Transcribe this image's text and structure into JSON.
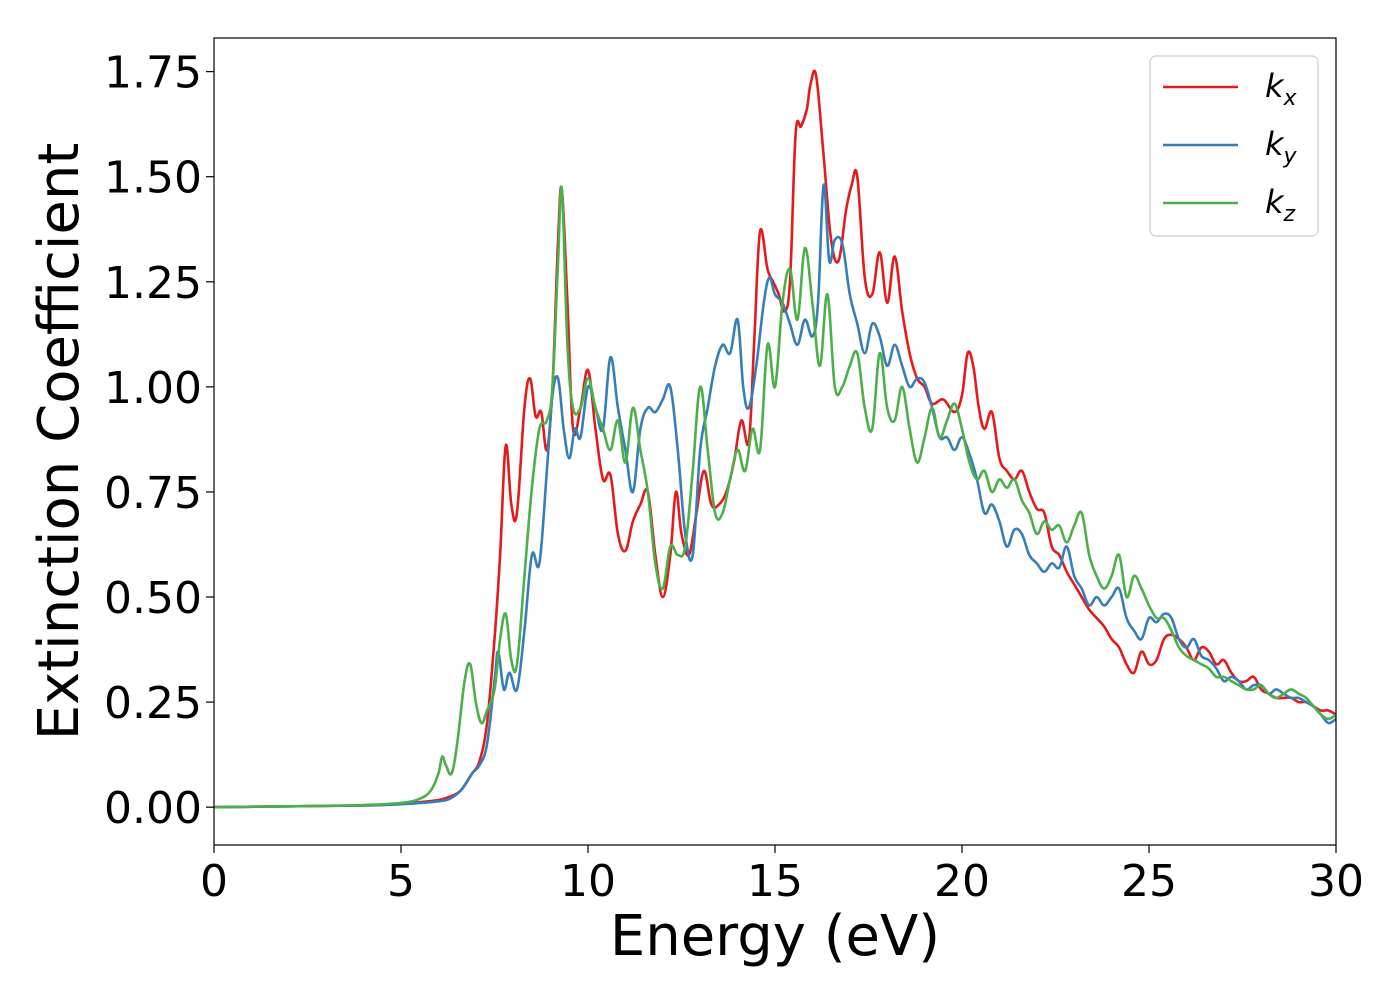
{
  "chart_data": {
    "type": "line",
    "xlabel": "Energy (eV)",
    "ylabel": "Extinction Coefficient",
    "xlim": [
      0,
      30
    ],
    "ylim": [
      -0.09,
      1.83
    ],
    "xticks": [
      0,
      5,
      10,
      15,
      20,
      25,
      30
    ],
    "xtick_labels": [
      "0",
      "5",
      "10",
      "15",
      "20",
      "25",
      "30"
    ],
    "yticks": [
      0.0,
      0.25,
      0.5,
      0.75,
      1.0,
      1.25,
      1.5,
      1.75
    ],
    "ytick_labels": [
      "0.00",
      "0.25",
      "0.50",
      "0.75",
      "1.00",
      "1.25",
      "1.50",
      "1.75"
    ],
    "grid": false,
    "legend_position": "top-right",
    "series": [
      {
        "name": "kx",
        "label_main": "k",
        "label_sub": "x",
        "color": "#e41a1c",
        "x": [
          0,
          2,
          4,
          5,
          5.5,
          6,
          6.3,
          6.6,
          6.9,
          7.1,
          7.3,
          7.5,
          7.65,
          7.8,
          7.95,
          8.1,
          8.3,
          8.45,
          8.6,
          8.75,
          8.9,
          9.05,
          9.2,
          9.3,
          9.45,
          9.6,
          9.8,
          10.0,
          10.2,
          10.4,
          10.6,
          10.8,
          11.0,
          11.2,
          11.4,
          11.6,
          11.8,
          12.0,
          12.2,
          12.35,
          12.5,
          12.7,
          12.9,
          13.1,
          13.3,
          13.5,
          13.7,
          13.9,
          14.1,
          14.3,
          14.45,
          14.6,
          14.8,
          14.95,
          15.1,
          15.25,
          15.4,
          15.55,
          15.7,
          15.85,
          15.95,
          16.1,
          16.3,
          16.5,
          16.7,
          16.9,
          17.05,
          17.2,
          17.4,
          17.6,
          17.8,
          18.0,
          18.2,
          18.4,
          18.6,
          18.8,
          19.0,
          19.2,
          19.5,
          19.8,
          20.0,
          20.15,
          20.3,
          20.45,
          20.6,
          20.8,
          21.0,
          21.2,
          21.4,
          21.6,
          21.8,
          22.0,
          22.2,
          22.4,
          22.6,
          22.8,
          23.0,
          23.2,
          23.4,
          23.6,
          23.8,
          24.0,
          24.2,
          24.4,
          24.6,
          24.8,
          25.0,
          25.2,
          25.4,
          25.6,
          25.8,
          26.0,
          26.2,
          26.4,
          26.6,
          26.8,
          27.0,
          27.2,
          27.4,
          27.6,
          27.8,
          28.0,
          28.2,
          28.4,
          28.6,
          28.8,
          29.0,
          29.2,
          29.4,
          29.6,
          29.8,
          30.0
        ],
        "y": [
          0.0,
          0.002,
          0.004,
          0.008,
          0.012,
          0.017,
          0.025,
          0.04,
          0.08,
          0.11,
          0.2,
          0.4,
          0.6,
          0.86,
          0.72,
          0.7,
          0.95,
          1.02,
          0.93,
          0.94,
          0.85,
          1.0,
          1.35,
          1.47,
          1.2,
          0.9,
          0.95,
          1.04,
          0.9,
          0.78,
          0.79,
          0.65,
          0.61,
          0.68,
          0.72,
          0.75,
          0.6,
          0.5,
          0.6,
          0.75,
          0.65,
          0.6,
          0.7,
          0.8,
          0.72,
          0.72,
          0.75,
          0.82,
          0.92,
          0.87,
          1.12,
          1.37,
          1.28,
          1.25,
          1.22,
          1.18,
          1.25,
          1.6,
          1.62,
          1.66,
          1.72,
          1.74,
          1.55,
          1.35,
          1.3,
          1.42,
          1.48,
          1.5,
          1.26,
          1.22,
          1.32,
          1.2,
          1.31,
          1.18,
          1.08,
          1.02,
          1.0,
          0.96,
          0.97,
          0.94,
          0.98,
          1.08,
          1.05,
          0.95,
          0.9,
          0.94,
          0.83,
          0.8,
          0.78,
          0.8,
          0.75,
          0.71,
          0.7,
          0.62,
          0.6,
          0.56,
          0.53,
          0.5,
          0.47,
          0.45,
          0.43,
          0.4,
          0.38,
          0.34,
          0.32,
          0.37,
          0.34,
          0.35,
          0.4,
          0.41,
          0.4,
          0.38,
          0.35,
          0.38,
          0.37,
          0.34,
          0.35,
          0.32,
          0.3,
          0.3,
          0.31,
          0.28,
          0.27,
          0.26,
          0.26,
          0.26,
          0.25,
          0.25,
          0.24,
          0.23,
          0.23,
          0.22
        ],
        "note": ""
      },
      {
        "name": "ky",
        "label_main": "k",
        "label_sub": "y",
        "color": "#377eb8",
        "x": [
          0,
          2,
          4,
          5,
          5.5,
          6,
          6.3,
          6.6,
          6.9,
          7.1,
          7.3,
          7.5,
          7.6,
          7.75,
          7.9,
          8.1,
          8.3,
          8.5,
          8.7,
          8.9,
          9.05,
          9.2,
          9.35,
          9.5,
          9.65,
          9.8,
          10.0,
          10.2,
          10.4,
          10.6,
          10.8,
          11.0,
          11.2,
          11.4,
          11.6,
          11.8,
          12.0,
          12.2,
          12.4,
          12.6,
          12.8,
          13.0,
          13.2,
          13.4,
          13.6,
          13.8,
          14.0,
          14.15,
          14.3,
          14.5,
          14.7,
          14.85,
          15.0,
          15.2,
          15.4,
          15.6,
          15.8,
          16.0,
          16.15,
          16.3,
          16.45,
          16.6,
          16.8,
          17.0,
          17.2,
          17.4,
          17.6,
          17.8,
          18.0,
          18.2,
          18.4,
          18.6,
          18.8,
          19.0,
          19.2,
          19.4,
          19.6,
          19.8,
          20.0,
          20.2,
          20.4,
          20.6,
          20.8,
          21.0,
          21.2,
          21.4,
          21.6,
          21.8,
          22.0,
          22.2,
          22.4,
          22.6,
          22.8,
          23.0,
          23.2,
          23.4,
          23.6,
          23.8,
          24.0,
          24.2,
          24.4,
          24.6,
          24.8,
          25.0,
          25.2,
          25.4,
          25.6,
          25.8,
          26.0,
          26.2,
          26.4,
          26.6,
          26.8,
          27.0,
          27.2,
          27.4,
          27.6,
          27.8,
          28.0,
          28.2,
          28.4,
          28.6,
          28.8,
          29.0,
          29.2,
          29.4,
          29.6,
          29.8,
          30.0
        ],
        "y": [
          0.0,
          0.002,
          0.004,
          0.007,
          0.01,
          0.014,
          0.02,
          0.04,
          0.08,
          0.1,
          0.15,
          0.3,
          0.37,
          0.28,
          0.32,
          0.28,
          0.42,
          0.6,
          0.58,
          0.8,
          0.98,
          1.02,
          0.9,
          0.83,
          0.9,
          0.88,
          1.0,
          0.95,
          0.9,
          1.07,
          0.95,
          0.85,
          0.75,
          0.9,
          0.95,
          0.94,
          0.97,
          1.0,
          0.85,
          0.65,
          0.6,
          0.85,
          0.95,
          1.05,
          1.1,
          1.08,
          1.16,
          1.0,
          0.95,
          1.05,
          1.2,
          1.26,
          1.22,
          1.2,
          1.15,
          1.1,
          1.16,
          1.12,
          1.2,
          1.48,
          1.3,
          1.35,
          1.34,
          1.22,
          1.15,
          1.08,
          1.15,
          1.12,
          1.05,
          1.1,
          1.05,
          1.0,
          1.02,
          1.01,
          0.95,
          0.88,
          0.88,
          0.85,
          0.88,
          0.84,
          0.78,
          0.7,
          0.72,
          0.68,
          0.62,
          0.66,
          0.65,
          0.6,
          0.58,
          0.56,
          0.58,
          0.57,
          0.62,
          0.55,
          0.52,
          0.48,
          0.5,
          0.48,
          0.5,
          0.52,
          0.45,
          0.42,
          0.4,
          0.45,
          0.44,
          0.46,
          0.45,
          0.4,
          0.38,
          0.4,
          0.36,
          0.35,
          0.33,
          0.3,
          0.31,
          0.3,
          0.28,
          0.29,
          0.29,
          0.27,
          0.28,
          0.27,
          0.26,
          0.26,
          0.25,
          0.24,
          0.22,
          0.2,
          0.21
        ],
        "note": ""
      },
      {
        "name": "kz",
        "label_main": "k",
        "label_sub": "z",
        "color": "#4daf4a",
        "x": [
          0,
          2,
          4,
          5,
          5.5,
          5.8,
          6.0,
          6.1,
          6.2,
          6.35,
          6.5,
          6.7,
          6.85,
          7.0,
          7.15,
          7.3,
          7.5,
          7.65,
          7.8,
          7.95,
          8.1,
          8.3,
          8.5,
          8.7,
          8.9,
          9.05,
          9.2,
          9.3,
          9.45,
          9.6,
          9.8,
          10.0,
          10.2,
          10.4,
          10.6,
          10.8,
          11.0,
          11.2,
          11.4,
          11.6,
          11.8,
          12.0,
          12.2,
          12.4,
          12.6,
          12.8,
          13.0,
          13.2,
          13.4,
          13.6,
          13.8,
          14.0,
          14.2,
          14.4,
          14.6,
          14.8,
          15.0,
          15.2,
          15.4,
          15.6,
          15.8,
          16.0,
          16.2,
          16.4,
          16.6,
          16.8,
          17.0,
          17.2,
          17.4,
          17.6,
          17.8,
          18.0,
          18.2,
          18.4,
          18.6,
          18.8,
          19.0,
          19.2,
          19.4,
          19.6,
          19.8,
          20.0,
          20.2,
          20.4,
          20.6,
          20.8,
          21.0,
          21.2,
          21.4,
          21.6,
          21.8,
          22.0,
          22.2,
          22.4,
          22.6,
          22.8,
          23.0,
          23.2,
          23.4,
          23.6,
          23.8,
          24.0,
          24.2,
          24.4,
          24.6,
          24.8,
          25.0,
          25.2,
          25.4,
          25.6,
          25.8,
          26.0,
          26.2,
          26.4,
          26.6,
          26.8,
          27.0,
          27.2,
          27.4,
          27.6,
          27.8,
          28.0,
          28.2,
          28.4,
          28.6,
          28.8,
          29.0,
          29.2,
          29.4,
          29.6,
          29.8,
          30.0
        ],
        "y": [
          0.0,
          0.002,
          0.005,
          0.01,
          0.02,
          0.04,
          0.08,
          0.12,
          0.1,
          0.08,
          0.15,
          0.3,
          0.34,
          0.25,
          0.2,
          0.23,
          0.28,
          0.4,
          0.46,
          0.35,
          0.34,
          0.55,
          0.76,
          0.9,
          0.92,
          1.0,
          1.3,
          1.47,
          1.1,
          0.95,
          0.95,
          1.02,
          0.95,
          0.9,
          0.85,
          0.92,
          0.82,
          0.95,
          0.85,
          0.75,
          0.58,
          0.52,
          0.62,
          0.6,
          0.62,
          0.8,
          1.0,
          0.85,
          0.7,
          0.7,
          0.78,
          0.85,
          0.8,
          0.9,
          0.85,
          1.1,
          1.0,
          1.2,
          1.28,
          1.16,
          1.33,
          1.2,
          1.05,
          1.22,
          1.0,
          1.0,
          1.05,
          1.08,
          0.95,
          0.9,
          1.08,
          0.95,
          0.92,
          1.0,
          0.9,
          0.82,
          0.88,
          0.95,
          0.88,
          0.92,
          0.96,
          0.9,
          0.82,
          0.78,
          0.8,
          0.75,
          0.78,
          0.76,
          0.78,
          0.73,
          0.7,
          0.65,
          0.68,
          0.66,
          0.67,
          0.63,
          0.67,
          0.7,
          0.6,
          0.55,
          0.52,
          0.55,
          0.6,
          0.5,
          0.55,
          0.52,
          0.48,
          0.45,
          0.45,
          0.42,
          0.38,
          0.36,
          0.35,
          0.34,
          0.33,
          0.31,
          0.31,
          0.3,
          0.29,
          0.28,
          0.28,
          0.29,
          0.27,
          0.26,
          0.27,
          0.28,
          0.27,
          0.26,
          0.24,
          0.22,
          0.21,
          0.22
        ],
        "note": ""
      }
    ]
  }
}
